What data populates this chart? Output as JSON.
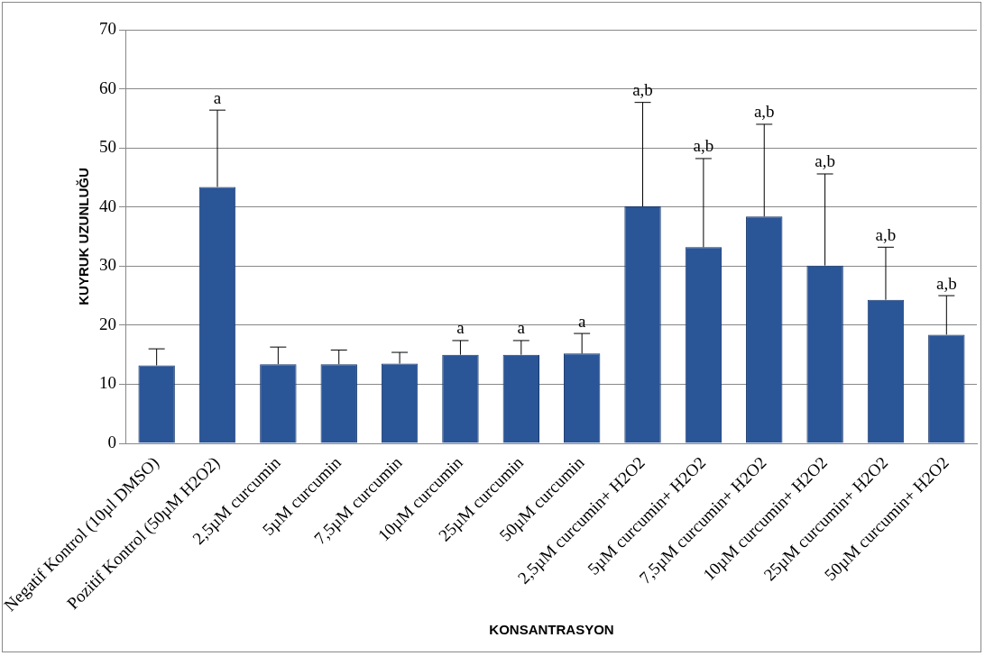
{
  "chart_data": {
    "type": "bar",
    "xlabel": "KONSANTRASYON",
    "ylabel": "KUYRUK UZUNLUĞU",
    "categories": [
      "Negatif Kontrol (10µl DMSO)",
      "Pozitif Kontrol (50µM H2O2)",
      "2,5µM curcumin",
      "5µM curcumin",
      "7,5µM curcumin",
      "10µM curcumin",
      "25µM curcumin",
      "50µM curcumin",
      "2,5µM curcumin+ H2O2",
      "5µM curcumin+ H2O2",
      "7,5µM curcumin+ H2O2",
      "10µM curcumin+ H2O2",
      "25µM curcumin+ H2O2",
      "50µM curcumin+ H2O2"
    ],
    "values": [
      13.2,
      43.4,
      13.4,
      13.4,
      13.5,
      15.0,
      15.0,
      15.2,
      40.1,
      33.2,
      38.4,
      30.1,
      24.3,
      18.4
    ],
    "errors": [
      [
        13.2,
        16.0
      ],
      [
        43.4,
        56.4
      ],
      [
        13.4,
        16.3
      ],
      [
        13.4,
        15.8
      ],
      [
        13.5,
        15.4
      ],
      [
        15.0,
        17.4
      ],
      [
        15.0,
        17.4
      ],
      [
        15.2,
        18.6
      ],
      [
        40.1,
        57.7
      ],
      [
        33.2,
        48.2
      ],
      [
        38.4,
        54.0
      ],
      [
        30.1,
        45.6
      ],
      [
        24.3,
        33.2
      ],
      [
        18.4,
        25.0
      ]
    ],
    "color": "#2a5597",
    "ylim": [
      0,
      70
    ],
    "yticks": [
      0,
      10,
      20,
      30,
      40,
      50,
      60,
      70
    ],
    "grid": "y",
    "legend": false,
    "annotations": [
      {
        "text": "a",
        "x": "Pozitif Kontrol (50µM H2O2)",
        "y": 56.4
      },
      {
        "text": "a",
        "x": "10µM curcumin",
        "y": 17.4
      },
      {
        "text": "a",
        "x": "25µM curcumin",
        "y": 17.4
      },
      {
        "text": "a",
        "x": "50µM curcumin",
        "y": 18.6
      },
      {
        "text": "a,b",
        "x": "2,5µM curcumin+ H2O2",
        "y": 57.7
      },
      {
        "text": "a,b",
        "x": "5µM curcumin+ H2O2",
        "y": 48.2
      },
      {
        "text": "a,b",
        "x": "7,5µM curcumin+ H2O2",
        "y": 54.0
      },
      {
        "text": "a,b",
        "x": "10µM curcumin+ H2O2",
        "y": 45.6
      },
      {
        "text": "a,b",
        "x": "25µM curcumin+ H2O2",
        "y": 33.2
      },
      {
        "text": "a,b",
        "x": "50µM curcumin+ H2O2",
        "y": 25.0
      }
    ]
  }
}
